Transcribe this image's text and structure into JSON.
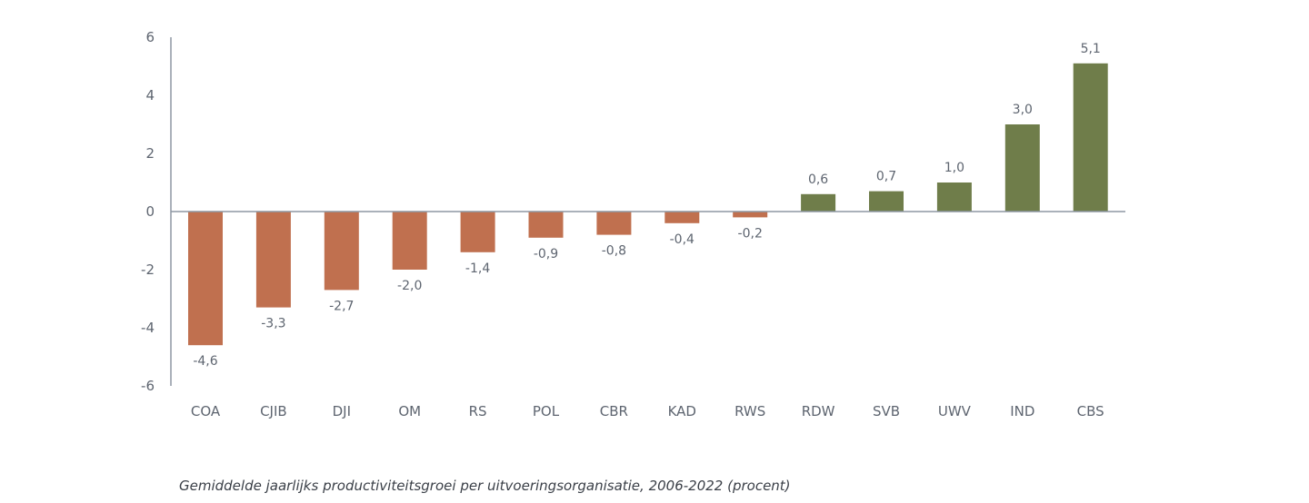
{
  "caption": "Gemiddelde jaarlijks productiviteitsgroei per uitvoeringsorganisatie, 2006-2022 (procent)",
  "chart_data": {
    "type": "bar",
    "title": "",
    "xlabel": "",
    "ylabel": "",
    "categories": [
      "COA",
      "CJIB",
      "DJI",
      "OM",
      "RS",
      "POL",
      "CBR",
      "KAD",
      "RWS",
      "RDW",
      "SVB",
      "UWV",
      "IND",
      "CBS"
    ],
    "values": [
      -4.6,
      -3.3,
      -2.7,
      -2.0,
      -1.4,
      -0.9,
      -0.8,
      -0.4,
      -0.2,
      0.6,
      0.7,
      1.0,
      3.0,
      5.1
    ],
    "value_labels": [
      "-4,6",
      "-3,3",
      "-2,7",
      "-2,0",
      "-1,4",
      "-0,9",
      "-0,8",
      "-0,4",
      "-0,2",
      "0,6",
      "0,7",
      "1,0",
      "3,0",
      "5,1"
    ],
    "ylim": [
      -6,
      6
    ],
    "yticks": [
      6,
      4,
      2,
      0,
      -2,
      -4,
      -6
    ],
    "ytick_labels": [
      "6",
      "4",
      "2",
      "0",
      "-2",
      "-4",
      "-6"
    ],
    "grid": false,
    "legend": "none",
    "colors": {
      "negative": "#c0704f",
      "positive": "#6f7d4a",
      "axis": "#8d97a3"
    }
  }
}
